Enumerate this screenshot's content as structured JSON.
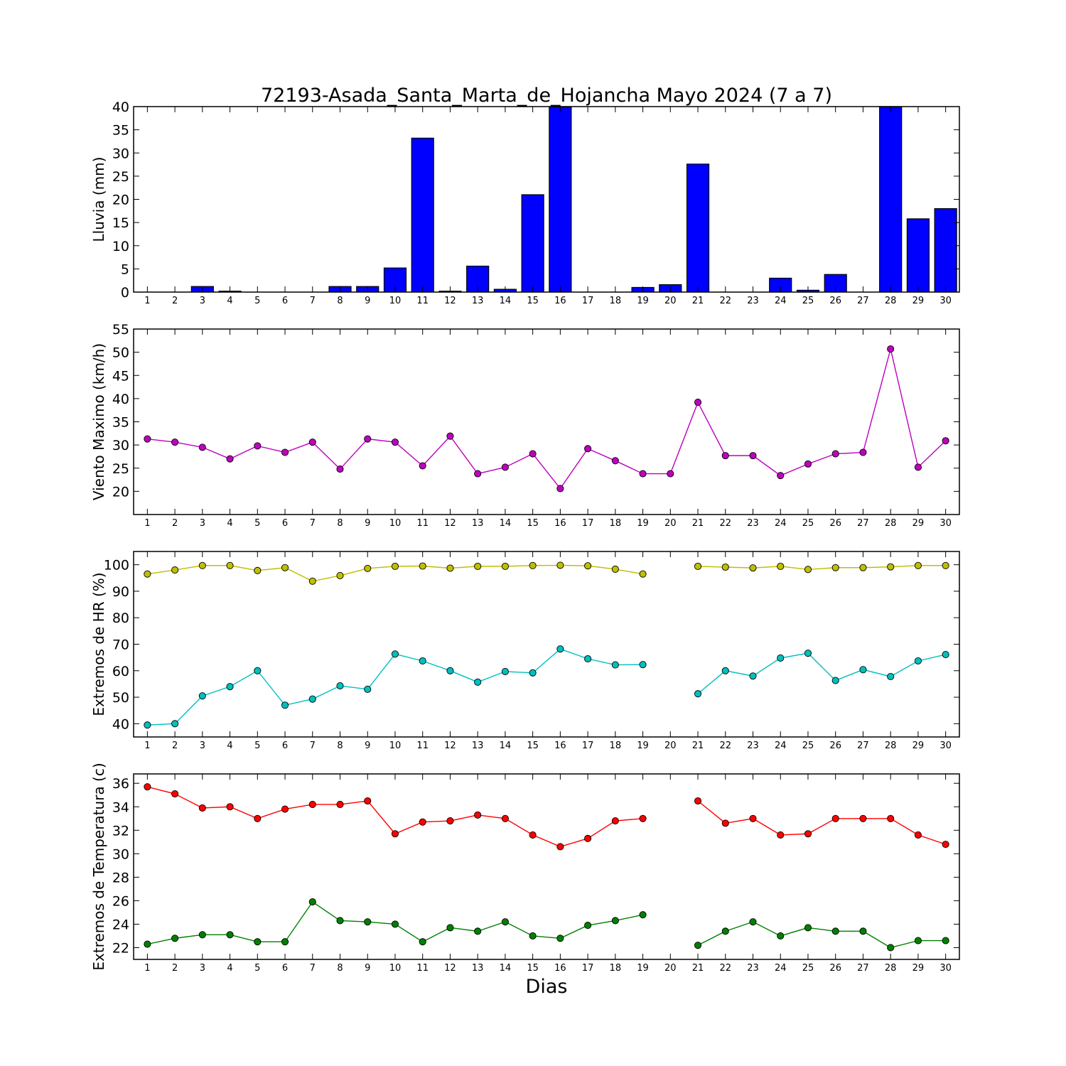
{
  "title": "72193-Asada_Santa_Marta_de_Hojancha Mayo 2024  (7 a 7)",
  "xlabel": "Dias",
  "chart_data": [
    {
      "id": "rain",
      "type": "bar",
      "ylabel": "Lluvia (mm)",
      "ylim": [
        0,
        40
      ],
      "yticks": [
        0,
        5,
        10,
        15,
        20,
        25,
        30,
        35,
        40
      ],
      "xlim": [
        0.5,
        30.5
      ],
      "categories": [
        1,
        2,
        3,
        4,
        5,
        6,
        7,
        8,
        9,
        10,
        11,
        12,
        13,
        14,
        15,
        16,
        17,
        18,
        19,
        20,
        21,
        22,
        23,
        24,
        25,
        26,
        27,
        28,
        29,
        30
      ],
      "series": [
        {
          "color": "#0000ff",
          "values": [
            0,
            0,
            1.2,
            0.2,
            0,
            0,
            0,
            1.2,
            1.2,
            5.2,
            33.2,
            0.2,
            5.6,
            0.6,
            21.0,
            40.0,
            0,
            0,
            1.0,
            1.6,
            27.6,
            0,
            0,
            3.0,
            0.4,
            3.8,
            0,
            40.0,
            15.8,
            18.0
          ]
        }
      ]
    },
    {
      "id": "wind",
      "type": "line",
      "ylabel": "Viento Maximo (km/h)",
      "ylim": [
        15,
        55
      ],
      "yticks": [
        20,
        25,
        30,
        35,
        40,
        45,
        50,
        55
      ],
      "xlim": [
        0.5,
        30.5
      ],
      "categories": [
        1,
        2,
        3,
        4,
        5,
        6,
        7,
        8,
        9,
        10,
        11,
        12,
        13,
        14,
        15,
        16,
        17,
        18,
        19,
        20,
        21,
        22,
        23,
        24,
        25,
        26,
        27,
        28,
        29,
        30
      ],
      "series": [
        {
          "color": "#bf00bf",
          "values": [
            31.3,
            30.6,
            29.5,
            27.0,
            29.8,
            28.4,
            30.6,
            24.8,
            31.3,
            30.6,
            25.5,
            31.9,
            23.8,
            25.2,
            28.1,
            20.6,
            29.2,
            26.6,
            23.8,
            23.8,
            39.2,
            27.7,
            27.7,
            23.4,
            25.9,
            28.1,
            28.4,
            50.7,
            25.2,
            30.9
          ]
        }
      ]
    },
    {
      "id": "humidity",
      "type": "line",
      "ylabel": "Extremos de HR (%)",
      "ylim": [
        35,
        105
      ],
      "yticks": [
        40,
        50,
        60,
        70,
        80,
        90,
        100
      ],
      "xlim": [
        0.5,
        30.5
      ],
      "categories": [
        1,
        2,
        3,
        4,
        5,
        6,
        7,
        8,
        9,
        10,
        11,
        12,
        13,
        14,
        15,
        16,
        17,
        18,
        19,
        20,
        21,
        22,
        23,
        24,
        25,
        26,
        27,
        28,
        29,
        30
      ],
      "series": [
        {
          "color": "#bfbf00",
          "values": [
            96.5,
            98,
            99.7,
            99.7,
            97.8,
            98.9,
            93.8,
            95.9,
            98.6,
            99.4,
            99.5,
            98.7,
            99.4,
            99.4,
            99.7,
            99.8,
            99.6,
            98.3,
            96.5,
            null,
            99.4,
            99.1,
            98.8,
            99.4,
            98.2,
            98.9,
            98.9,
            99.2,
            99.7,
            99.7
          ]
        },
        {
          "color": "#00bfbf",
          "values": [
            39.5,
            40,
            50.5,
            54,
            60,
            47,
            49.3,
            54.3,
            53,
            66.3,
            63.7,
            60,
            55.7,
            59.7,
            59.2,
            68.2,
            64.5,
            62.2,
            62.3,
            null,
            51.3,
            60,
            58,
            64.8,
            66.6,
            56.3,
            60.4,
            57.8,
            63.7,
            66.1
          ]
        }
      ]
    },
    {
      "id": "temperature",
      "type": "line",
      "ylabel": "Extremos de Temperatura (c)",
      "ylim": [
        21,
        36.8
      ],
      "yticks": [
        22,
        24,
        26,
        28,
        30,
        32,
        34,
        36
      ],
      "xlim": [
        0.5,
        30.5
      ],
      "categories": [
        1,
        2,
        3,
        4,
        5,
        6,
        7,
        8,
        9,
        10,
        11,
        12,
        13,
        14,
        15,
        16,
        17,
        18,
        19,
        20,
        21,
        22,
        23,
        24,
        25,
        26,
        27,
        28,
        29,
        30
      ],
      "series": [
        {
          "color": "#ff0000",
          "values": [
            35.7,
            35.1,
            33.9,
            34.0,
            33.0,
            33.8,
            34.2,
            34.2,
            34.5,
            31.7,
            32.7,
            32.8,
            33.3,
            33.0,
            31.6,
            30.6,
            31.3,
            32.8,
            33.0,
            null,
            34.5,
            32.6,
            33.0,
            31.6,
            31.7,
            33.0,
            33.0,
            33.0,
            31.6,
            30.8
          ]
        },
        {
          "color": "#008000",
          "values": [
            22.3,
            22.8,
            23.1,
            23.1,
            22.5,
            22.5,
            25.9,
            24.3,
            24.2,
            24.0,
            22.5,
            23.7,
            23.4,
            24.2,
            23.0,
            22.8,
            23.9,
            24.3,
            24.8,
            null,
            22.2,
            23.4,
            24.2,
            23.0,
            23.7,
            23.4,
            23.4,
            22.0,
            22.6,
            22.6
          ]
        }
      ]
    }
  ]
}
